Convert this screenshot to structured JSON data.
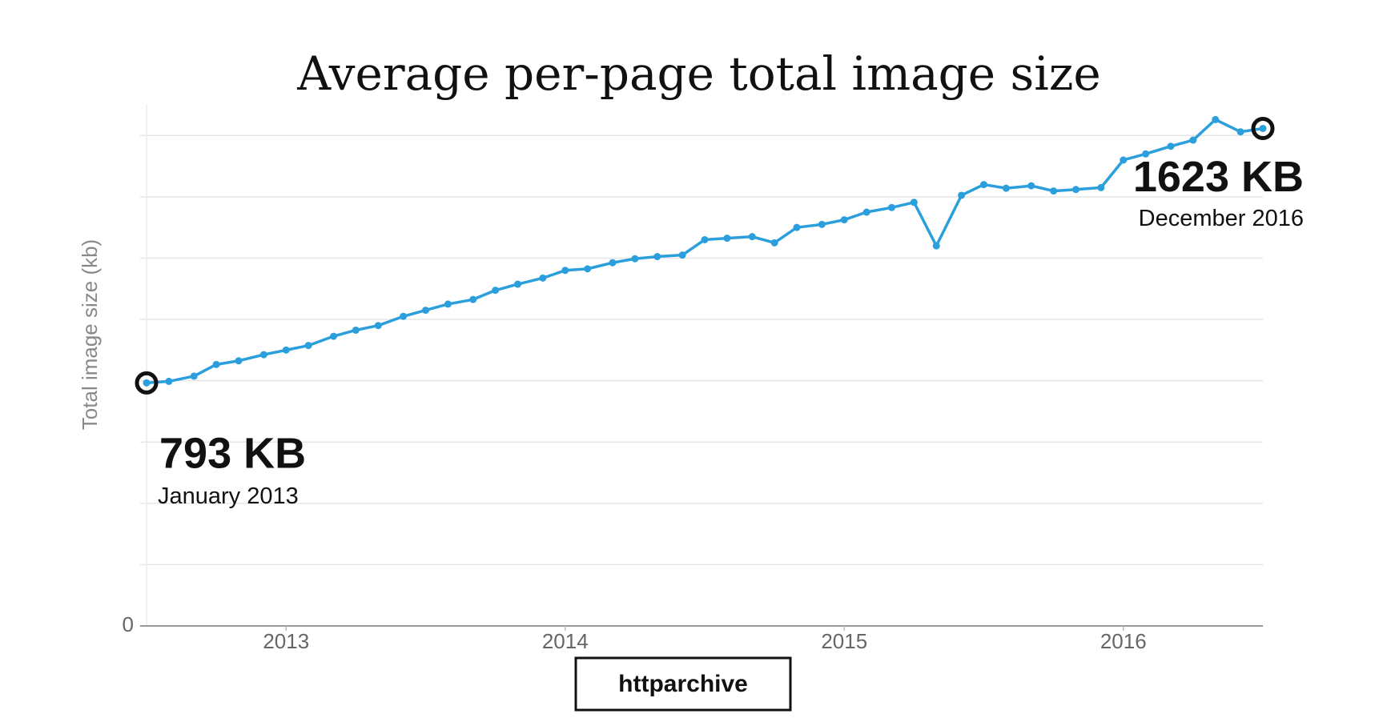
{
  "chart_data": {
    "type": "line",
    "title": "Average per-page total image size",
    "y_label": "Total image size (kb)",
    "x": [
      2012.5,
      2012.58,
      2012.67,
      2012.75,
      2012.83,
      2012.92,
      2013.0,
      2013.08,
      2013.17,
      2013.25,
      2013.33,
      2013.42,
      2013.5,
      2013.58,
      2013.67,
      2013.75,
      2013.83,
      2013.92,
      2014.0,
      2014.08,
      2014.17,
      2014.25,
      2014.33,
      2014.42,
      2014.5,
      2014.58,
      2014.67,
      2014.75,
      2014.83,
      2014.92,
      2015.0,
      2015.08,
      2015.17,
      2015.25,
      2015.33,
      2015.42,
      2015.5,
      2015.58,
      2015.67,
      2015.75,
      2015.83,
      2015.92,
      2016.0,
      2016.08,
      2016.17,
      2016.25,
      2016.33,
      2016.42,
      2016.5
    ],
    "series": [
      {
        "name": "httparchive",
        "color": "#2a9fdc",
        "values": [
          793,
          798,
          815,
          853,
          865,
          885,
          900,
          915,
          945,
          965,
          980,
          1010,
          1030,
          1050,
          1065,
          1095,
          1115,
          1135,
          1160,
          1165,
          1185,
          1198,
          1205,
          1210,
          1260,
          1265,
          1270,
          1250,
          1300,
          1310,
          1325,
          1350,
          1365,
          1382,
          1240,
          1405,
          1440,
          1428,
          1436,
          1419,
          1424,
          1430,
          1520,
          1540,
          1565,
          1585,
          1652,
          1612,
          1623
        ]
      }
    ],
    "xlim": [
      2012.5,
      2016.5
    ],
    "xticks": [
      2013,
      2014,
      2015,
      2016
    ],
    "ylim": [
      0,
      1700
    ],
    "yticks": [
      0
    ],
    "ygrid": [
      200,
      400,
      600,
      800,
      1000,
      1200,
      1400,
      1600
    ],
    "grid": true,
    "legend": "bottom",
    "annotations": [
      {
        "label": "793 KB",
        "value": 793,
        "text": "January 2013"
      },
      {
        "label": "1623 KB",
        "value": 1623,
        "text": "December 2016"
      }
    ]
  }
}
